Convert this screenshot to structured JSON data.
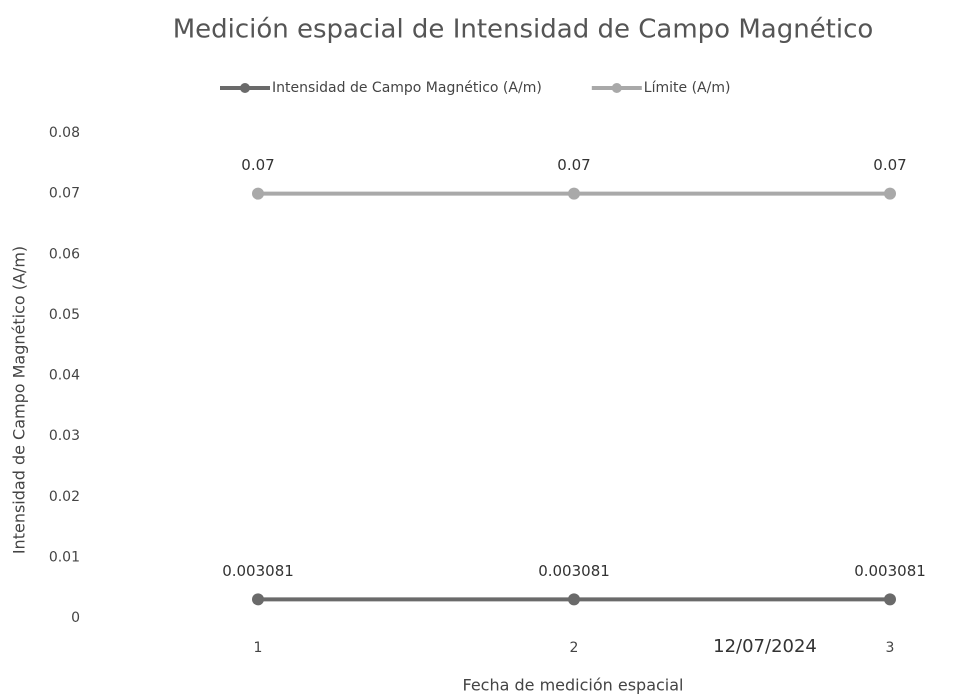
{
  "chart_data": {
    "type": "line",
    "title": "Medición espacial de Intensidad de Campo Magnético",
    "x_label": "Fecha de medición espacial",
    "y_label": "Intensidad de Campo Magnético (A/m)",
    "annotations": [
      "12/07/2024"
    ],
    "categories": [
      "1",
      "2",
      "3"
    ],
    "series": [
      {
        "name": "Intensidad de Campo Magnético (A/m)",
        "color": "#6a6a6a",
        "values": [
          0.003081,
          0.003081,
          0.003081
        ]
      },
      {
        "name": "Límite (A/m)",
        "color": "#a9a9a9",
        "values": [
          0.07,
          0.07,
          0.07
        ]
      }
    ],
    "ylim": [
      0,
      0.08
    ],
    "yticks": [
      0,
      0.01,
      0.02,
      0.03,
      0.04,
      0.05,
      0.06,
      0.07,
      0.08
    ],
    "grid": false,
    "legend": "top"
  }
}
